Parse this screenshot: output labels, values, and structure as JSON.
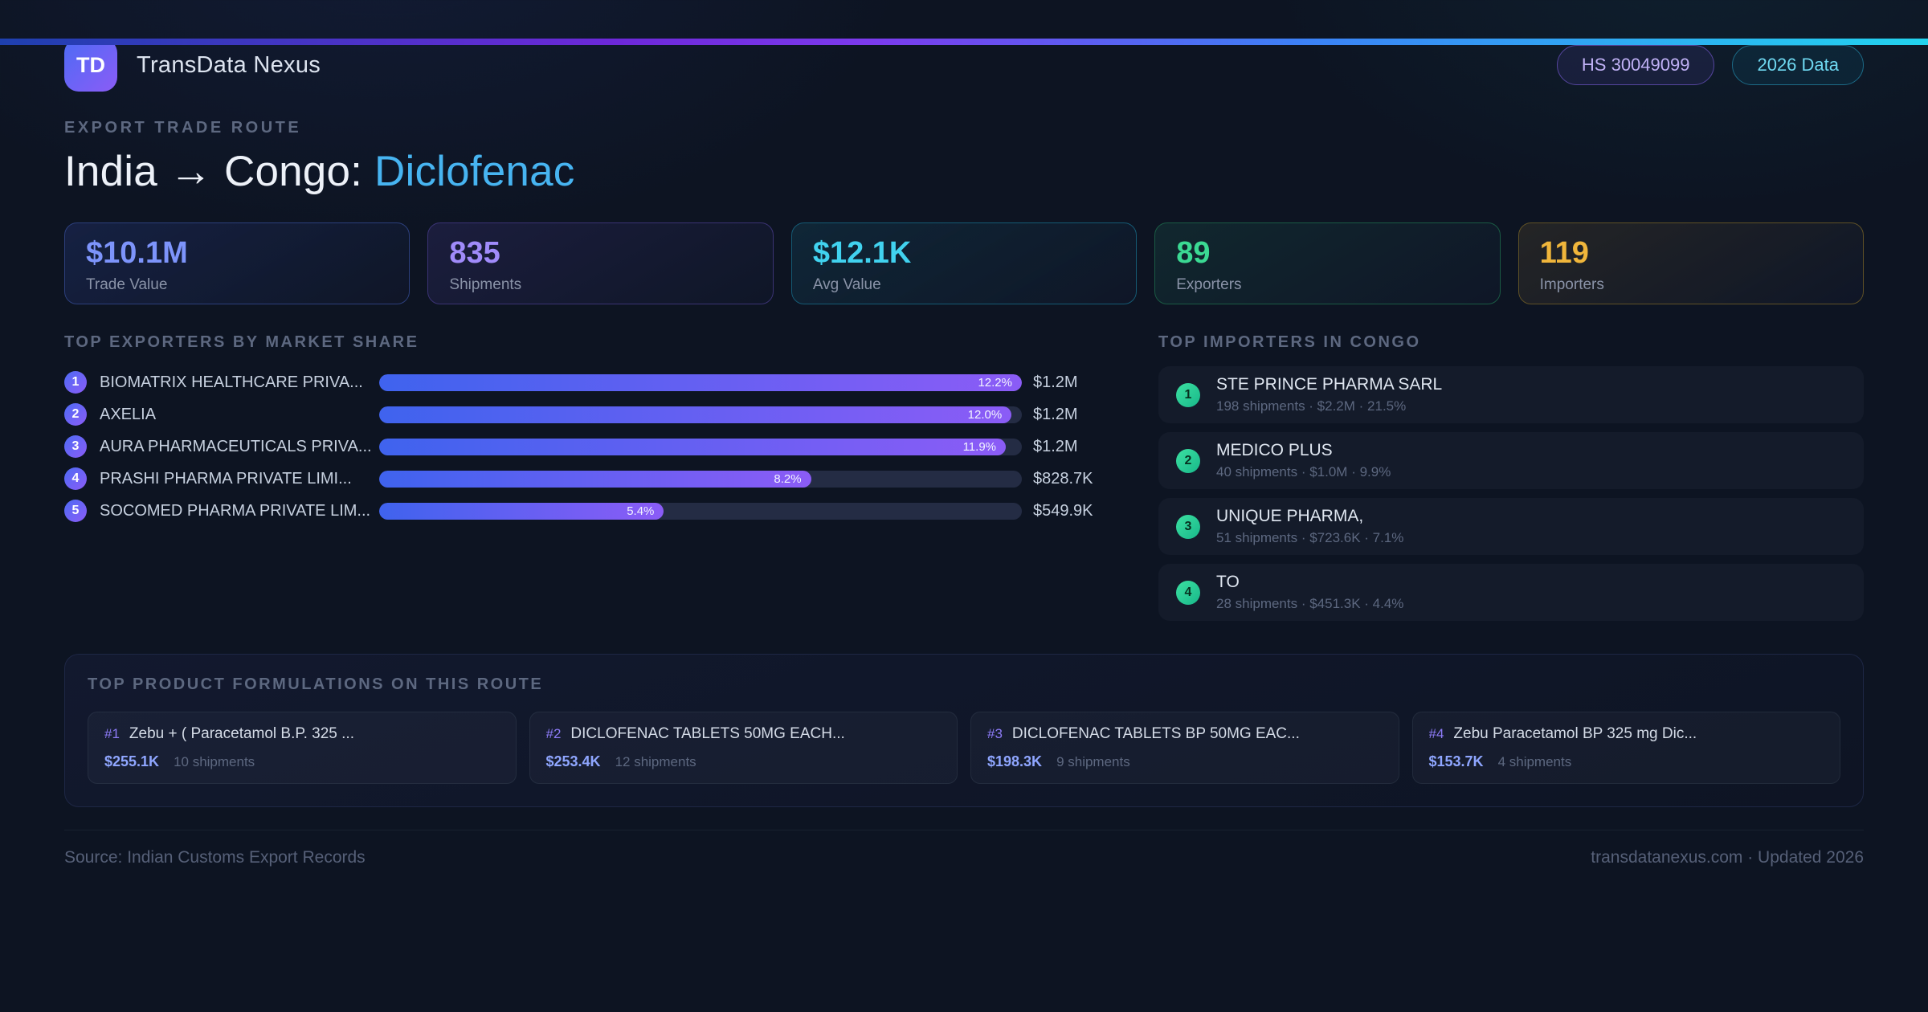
{
  "header": {
    "logo_text": "TD",
    "app_name": "TransData Nexus",
    "hs_badge": "HS 30049099",
    "year_badge": "2026 Data"
  },
  "hero": {
    "eyebrow": "EXPORT TRADE ROUTE",
    "title_main": "India → Congo:",
    "title_accent": "Diclofenac"
  },
  "stats": [
    {
      "value": "$10.1M",
      "label": "Trade Value",
      "accent": "#7d94fb"
    },
    {
      "value": "835",
      "label": "Shipments",
      "accent": "#a08bfa"
    },
    {
      "value": "$12.1K",
      "label": "Avg Value",
      "accent": "#41d2ef"
    },
    {
      "value": "89",
      "label": "Exporters",
      "accent": "#3bd993"
    },
    {
      "value": "119",
      "label": "Importers",
      "accent": "#f0b63b"
    }
  ],
  "exporters": {
    "title": "TOP EXPORTERS BY MARKET SHARE",
    "rows": [
      {
        "rank": "1",
        "name": "BIOMATRIX HEALTHCARE PRIVA...",
        "share": "12.2%",
        "bar_width": "100%",
        "value": "$1.2M"
      },
      {
        "rank": "2",
        "name": "AXELIA",
        "share": "12.0%",
        "bar_width": "98.4%",
        "value": "$1.2M"
      },
      {
        "rank": "3",
        "name": "AURA PHARMACEUTICALS PRIVA...",
        "share": "11.9%",
        "bar_width": "97.5%",
        "value": "$1.2M"
      },
      {
        "rank": "4",
        "name": "PRASHI PHARMA PRIVATE LIMI...",
        "share": "8.2%",
        "bar_width": "67.2%",
        "value": "$828.7K"
      },
      {
        "rank": "5",
        "name": "SOCOMED PHARMA PRIVATE LIM...",
        "share": "5.4%",
        "bar_width": "44.3%",
        "value": "$549.9K"
      }
    ]
  },
  "importers": {
    "title": "TOP IMPORTERS IN CONGO",
    "rows": [
      {
        "rank": "1",
        "name": "STE PRINCE PHARMA SARL",
        "stats": "198 shipments · $2.2M · 21.5%"
      },
      {
        "rank": "2",
        "name": "MEDICO PLUS",
        "stats": "40 shipments · $1.0M · 9.9%"
      },
      {
        "rank": "3",
        "name": "UNIQUE PHARMA,",
        "stats": "51 shipments · $723.6K · 7.1%"
      },
      {
        "rank": "4",
        "name": "TO",
        "stats": "28 shipments · $451.3K · 4.4%"
      }
    ]
  },
  "products": {
    "title": "TOP PRODUCT FORMULATIONS ON THIS ROUTE",
    "cards": [
      {
        "rank": "#1",
        "name": "Zebu + ( Paracetamol B.P. 325 ...",
        "value": "$255.1K",
        "shipments": "10 shipments"
      },
      {
        "rank": "#2",
        "name": "DICLOFENAC TABLETS 50MG EACH...",
        "value": "$253.4K",
        "shipments": "12 shipments"
      },
      {
        "rank": "#3",
        "name": "DICLOFENAC TABLETS BP 50MG EAC...",
        "value": "$198.3K",
        "shipments": "9 shipments"
      },
      {
        "rank": "#4",
        "name": "Zebu Paracetamol BP 325 mg Dic...",
        "value": "$153.7K",
        "shipments": "4 shipments"
      }
    ]
  },
  "footer": {
    "source": "Source: Indian Customs Export Records",
    "site": "transdatanexus.com · Updated 2026"
  },
  "theme": {
    "accent_blue": "#7d94fb",
    "accent_purple": "#a08bfa",
    "accent_cyan": "#41d2ef",
    "accent_green": "#3bd993",
    "accent_amber": "#f0b63b",
    "bar_gradient_start": "#3f63ee",
    "bar_gradient_end": "#8b5cf6",
    "background": "#0d1422"
  },
  "chart_data": [
    {
      "type": "bar",
      "title": "TOP EXPORTERS BY MARKET SHARE",
      "orientation": "horizontal",
      "categories": [
        "BIOMATRIX HEALTHCARE PRIVA...",
        "AXELIA",
        "AURA PHARMACEUTICALS PRIVA...",
        "PRASHI PHARMA PRIVATE LIMI...",
        "SOCOMED PHARMA PRIVATE LIM..."
      ],
      "series": [
        {
          "name": "market_share_pct",
          "values": [
            12.2,
            12.0,
            11.9,
            8.2,
            5.4
          ]
        }
      ],
      "bar_value_labels": [
        "$1.2M",
        "$1.2M",
        "$1.2M",
        "$828.7K",
        "$549.9K"
      ],
      "xlim": [
        0,
        12.2
      ],
      "grid": false,
      "legend": false
    },
    {
      "type": "table",
      "title": "TOP IMPORTERS IN CONGO",
      "columns": [
        "rank",
        "importer",
        "shipments",
        "value",
        "share_pct"
      ],
      "rows": [
        [
          1,
          "STE PRINCE PHARMA SARL",
          198,
          "$2.2M",
          21.5
        ],
        [
          2,
          "MEDICO PLUS",
          40,
          "$1.0M",
          9.9
        ],
        [
          3,
          "UNIQUE PHARMA,",
          51,
          "$723.6K",
          7.1
        ],
        [
          4,
          "TO",
          28,
          "$451.3K",
          4.4
        ]
      ]
    },
    {
      "type": "table",
      "title": "KPI SUMMARY",
      "columns": [
        "metric",
        "value"
      ],
      "rows": [
        [
          "Trade Value",
          "$10.1M"
        ],
        [
          "Shipments",
          835
        ],
        [
          "Avg Value",
          "$12.1K"
        ],
        [
          "Exporters",
          89
        ],
        [
          "Importers",
          119
        ]
      ]
    }
  ]
}
